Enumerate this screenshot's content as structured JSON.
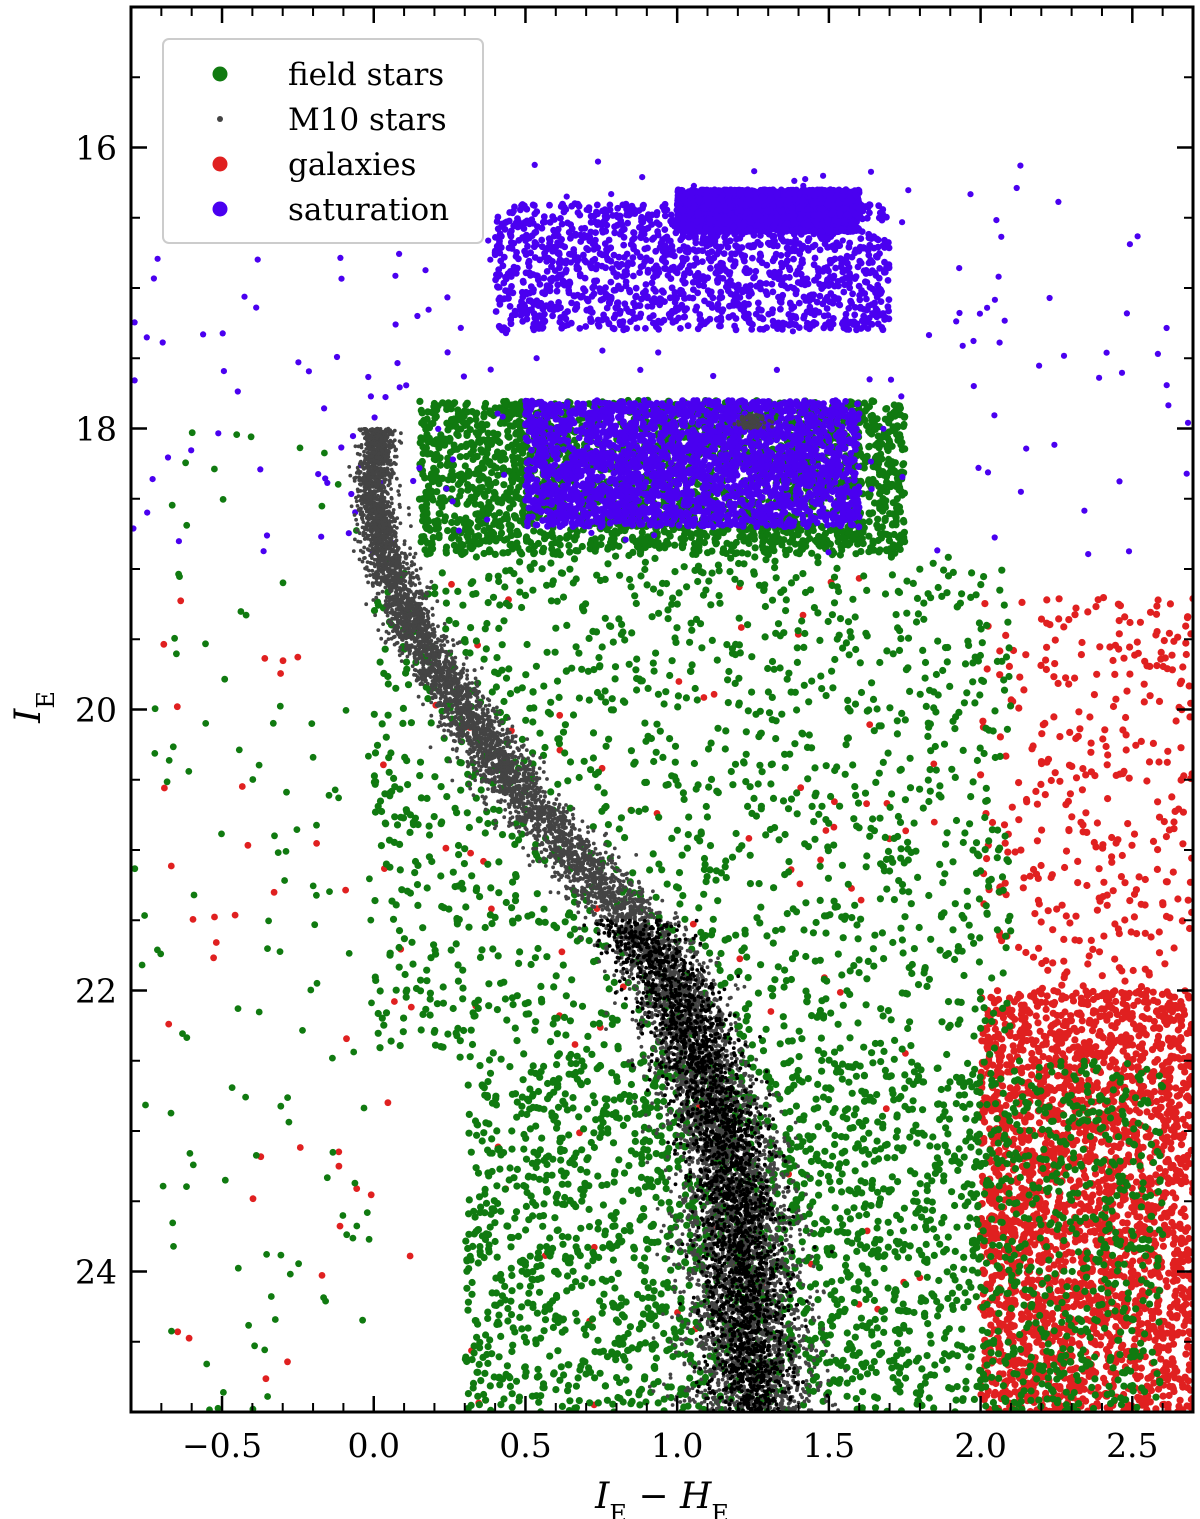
{
  "chart_data": {
    "type": "scatter",
    "title": "",
    "xlabel": "I_E − H_E",
    "ylabel": "I_E",
    "xlim": [
      -0.8,
      2.7
    ],
    "ylim": [
      25.0,
      15.0
    ],
    "y_inverted": true,
    "xticks": [
      "−0.5",
      "0.0",
      "0.5",
      "1.0",
      "1.5",
      "2.0",
      "2.5"
    ],
    "xtick_values": [
      -0.5,
      0.0,
      0.5,
      1.0,
      1.5,
      2.0,
      2.5
    ],
    "yticks": [
      "16",
      "18",
      "20",
      "22",
      "24"
    ],
    "ytick_values": [
      16,
      18,
      20,
      22,
      24
    ],
    "grid": false,
    "legend_position": "top-left",
    "series": [
      {
        "name": "field stars",
        "color": "#107a10",
        "marker": "dot",
        "regions": [
          {
            "x_range": [
              0.15,
              1.75
            ],
            "y_range": [
              17.8,
              18.9
            ],
            "density": "high"
          },
          {
            "x_range": [
              0.0,
              2.1
            ],
            "y_range": [
              18.9,
              22.5
            ],
            "density": "medium"
          },
          {
            "x_range": [
              0.3,
              2.6
            ],
            "y_range": [
              22.5,
              25.0
            ],
            "density": "high"
          }
        ]
      },
      {
        "name": "M10 stars",
        "color": "#444444",
        "marker": "small-dot",
        "ridge_line": [
          {
            "x": 0.02,
            "y": 18.0
          },
          {
            "x": 0.0,
            "y": 18.5
          },
          {
            "x": 0.05,
            "y": 19.0
          },
          {
            "x": 0.15,
            "y": 19.5
          },
          {
            "x": 0.3,
            "y": 20.0
          },
          {
            "x": 0.45,
            "y": 20.5
          },
          {
            "x": 0.65,
            "y": 21.0
          },
          {
            "x": 0.85,
            "y": 21.5
          },
          {
            "x": 1.0,
            "y": 22.0
          },
          {
            "x": 1.08,
            "y": 22.5
          },
          {
            "x": 1.15,
            "y": 23.0
          },
          {
            "x": 1.2,
            "y": 23.5
          },
          {
            "x": 1.22,
            "y": 24.0
          },
          {
            "x": 1.23,
            "y": 24.5
          },
          {
            "x": 1.25,
            "y": 25.0
          }
        ]
      },
      {
        "name": "galaxies",
        "color": "#e02020",
        "marker": "dot",
        "regions": [
          {
            "x_range": [
              2.0,
              2.7
            ],
            "y_range": [
              19.2,
              22.0
            ],
            "density": "low"
          },
          {
            "x_range": [
              2.0,
              2.7
            ],
            "y_range": [
              22.0,
              25.0
            ],
            "density": "high"
          }
        ]
      },
      {
        "name": "saturation",
        "color": "#4a00f0",
        "marker": "dot",
        "regions": [
          {
            "x_range": [
              0.4,
              1.7
            ],
            "y_range": [
              16.4,
              17.3
            ],
            "density": "medium"
          },
          {
            "x_range": [
              0.5,
              1.6
            ],
            "y_range": [
              17.8,
              18.7
            ],
            "density": "high"
          },
          {
            "x_range": [
              1.0,
              1.6
            ],
            "y_range": [
              16.3,
              16.6
            ],
            "density": "high"
          }
        ]
      }
    ]
  }
}
